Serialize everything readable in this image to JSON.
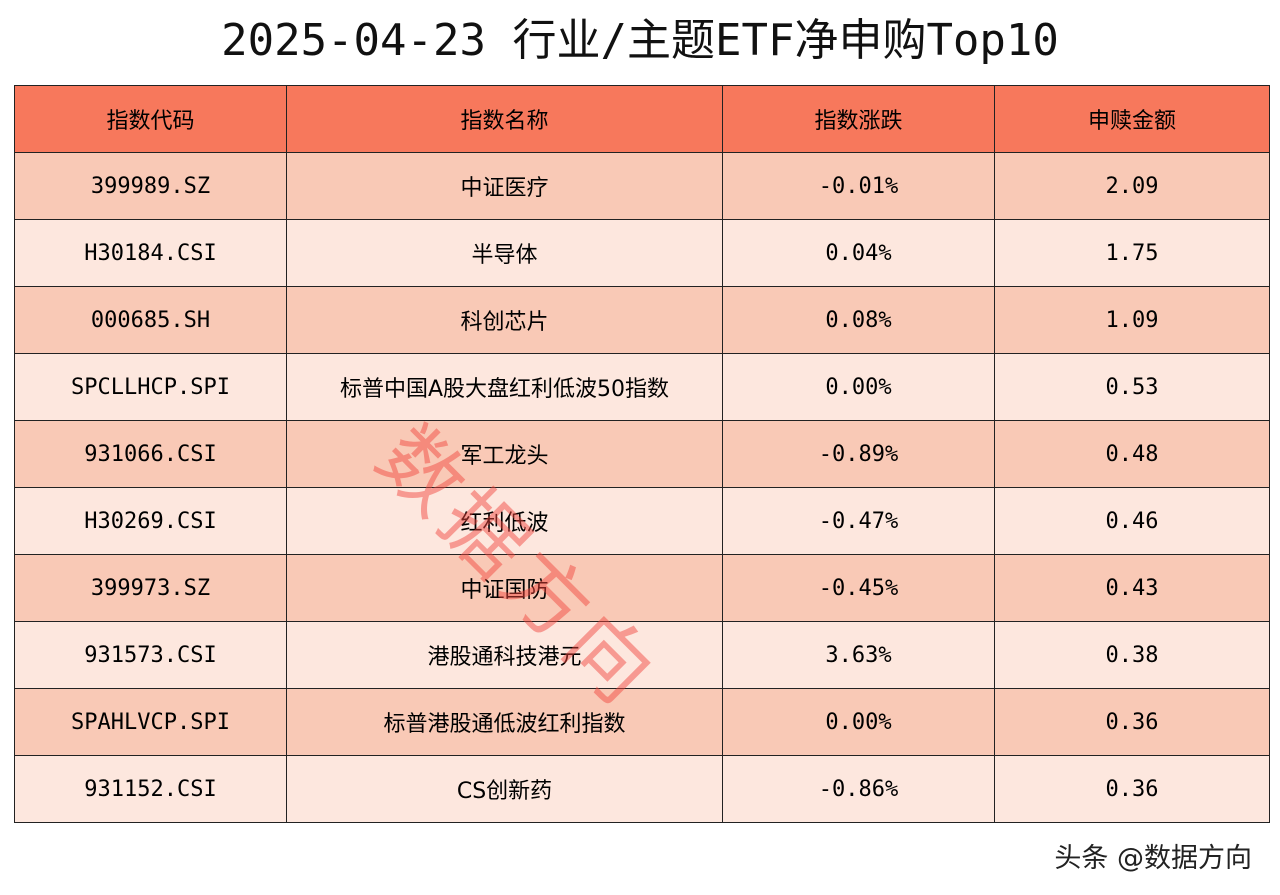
{
  "title": "2025-04-23 行业/主题ETF净申购Top10",
  "headers": [
    "指数代码",
    "指数名称",
    "指数涨跌",
    "申赎金额"
  ],
  "rows": [
    [
      "399989.SZ",
      "中证医疗",
      "-0.01%",
      "2.09"
    ],
    [
      "H30184.CSI",
      "半导体",
      "0.04%",
      "1.75"
    ],
    [
      "000685.SH",
      "科创芯片",
      "0.08%",
      "1.09"
    ],
    [
      "SPCLLHCP.SPI",
      "标普中国A股大盘红利低波50指数",
      "0.00%",
      "0.53"
    ],
    [
      "931066.CSI",
      "军工龙头",
      "-0.89%",
      "0.48"
    ],
    [
      "H30269.CSI",
      "红利低波",
      "-0.47%",
      "0.46"
    ],
    [
      "399973.SZ",
      "中证国防",
      "-0.45%",
      "0.43"
    ],
    [
      "931573.CSI",
      "港股通科技港元",
      "3.63%",
      "0.38"
    ],
    [
      "SPAHLVCP.SPI",
      "标普港股通低波红利指数",
      "0.00%",
      "0.36"
    ],
    [
      "931152.CSI",
      "CS创新药",
      "-0.86%",
      "0.36"
    ]
  ],
  "watermark": "数据方向",
  "footer": "头条 @数据方向",
  "colors": {
    "header_bg": "#f7785c",
    "row_odd_bg": "#f9c9b6",
    "row_even_bg": "#fde7de",
    "watermark": "#f0463c"
  }
}
